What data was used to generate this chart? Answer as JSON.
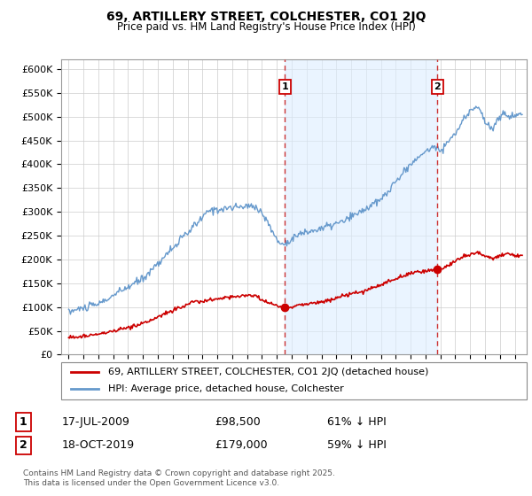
{
  "title": "69, ARTILLERY STREET, COLCHESTER, CO1 2JQ",
  "subtitle": "Price paid vs. HM Land Registry's House Price Index (HPI)",
  "legend_line1": "69, ARTILLERY STREET, COLCHESTER, CO1 2JQ (detached house)",
  "legend_line2": "HPI: Average price, detached house, Colchester",
  "annotation1_date": "17-JUL-2009",
  "annotation1_price": "£98,500",
  "annotation1_hpi": "61% ↓ HPI",
  "annotation2_date": "18-OCT-2019",
  "annotation2_price": "£179,000",
  "annotation2_hpi": "59% ↓ HPI",
  "footer": "Contains HM Land Registry data © Crown copyright and database right 2025.\nThis data is licensed under the Open Government Licence v3.0.",
  "price_color": "#cc0000",
  "hpi_color": "#6699cc",
  "hpi_span_color": "#ddeeff",
  "annotation_box_color": "#cc0000",
  "dashed_line_color": "#cc3333",
  "grid_color": "#cccccc",
  "ylim": [
    0,
    620000
  ],
  "yticks": [
    0,
    50000,
    100000,
    150000,
    200000,
    250000,
    300000,
    350000,
    400000,
    450000,
    500000,
    550000,
    600000
  ],
  "ytick_labels": [
    "£0",
    "£50K",
    "£100K",
    "£150K",
    "£200K",
    "£250K",
    "£300K",
    "£350K",
    "£400K",
    "£450K",
    "£500K",
    "£550K",
    "£600K"
  ],
  "sale1_x": 2009.54,
  "sale1_y": 98500,
  "sale2_x": 2019.79,
  "sale2_y": 179000,
  "xlim_left": 1994.5,
  "xlim_right": 2025.8
}
